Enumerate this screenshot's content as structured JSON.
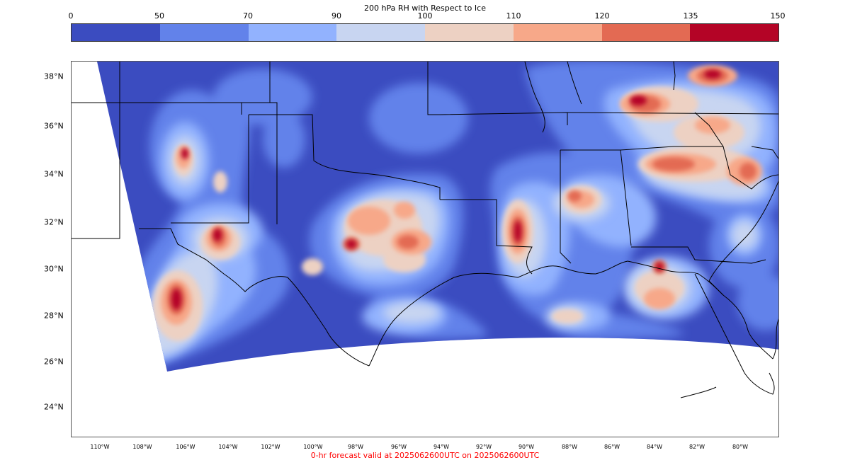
{
  "colorbar": {
    "title": "200 hPa RH with Respect to Ice",
    "ticks": [
      "0",
      "50",
      "70",
      "90",
      "100",
      "110",
      "120",
      "135",
      "150"
    ],
    "colors": [
      "#3b4cc0",
      "#6282ea",
      "#92b2fe",
      "#c8d5f1",
      "#edd1c3",
      "#f7a889",
      "#e36a53",
      "#b40426"
    ]
  },
  "map": {
    "lat_labels": [
      "38°N",
      "36°N",
      "34°N",
      "32°N",
      "30°N",
      "28°N",
      "26°N",
      "24°N"
    ],
    "lon_labels": [
      "110°W",
      "108°W",
      "106°W",
      "104°W",
      "102°W",
      "100°W",
      "98°W",
      "96°W",
      "94°W",
      "92°W",
      "90°W",
      "88°W",
      "86°W",
      "84°W",
      "82°W",
      "80°W"
    ]
  },
  "footer": "0-hr forecast valid at 2025062600UTC on 2025062600UTC"
}
